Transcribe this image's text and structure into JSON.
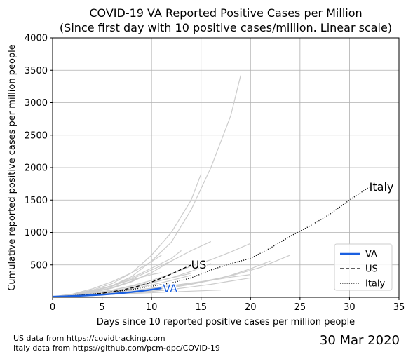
{
  "chart_data": {
    "type": "line",
    "title": "COVID-19 VA Reported Positive Cases per Million",
    "subtitle": "(Since first day with 10 positive cases/million. Linear scale)",
    "xlabel": "Days since 10 reported positive cases per million people",
    "ylabel": "Cumulative reported positive cases per million people",
    "xlim": [
      0,
      35
    ],
    "ylim": [
      0,
      4000
    ],
    "xticks": [
      0,
      5,
      10,
      15,
      20,
      25,
      30,
      35
    ],
    "xtick_labels": [
      "0",
      "5",
      "10",
      "15",
      "20",
      "25",
      "30",
      "35"
    ],
    "yticks": [
      500,
      1000,
      1500,
      2000,
      2500,
      3000,
      3500,
      4000
    ],
    "ytick_labels": [
      "500",
      "1000",
      "1500",
      "2000",
      "2500",
      "3000",
      "3500",
      "4000"
    ],
    "grid": true,
    "legend_position": "lower-right",
    "legend": [
      {
        "label": "VA",
        "style": "solid",
        "color": "#1a5fe0"
      },
      {
        "label": "US",
        "style": "dashed",
        "color": "#000000"
      },
      {
        "label": "Italy",
        "style": "dotted",
        "color": "#000000"
      }
    ],
    "series": [
      {
        "name": "VA",
        "color": "#1a5fe0",
        "style": "solid",
        "label_text": "VA",
        "x": [
          0,
          1,
          2,
          3,
          4,
          5,
          6,
          7,
          8,
          9,
          10,
          11
        ],
        "y": [
          10,
          14,
          19,
          25,
          32,
          40,
          52,
          65,
          80,
          98,
          118,
          140
        ]
      },
      {
        "name": "US",
        "color": "#000000",
        "style": "dashed",
        "label_text": "US",
        "x": [
          0,
          1,
          2,
          3,
          4,
          5,
          6,
          7,
          8,
          9,
          10,
          11,
          12,
          13,
          14
        ],
        "y": [
          10,
          15,
          22,
          32,
          45,
          62,
          85,
          112,
          145,
          185,
          235,
          295,
          360,
          430,
          500
        ]
      },
      {
        "name": "Italy",
        "color": "#000000",
        "style": "dotted",
        "label_text": "Italy",
        "x": [
          0,
          2,
          4,
          6,
          8,
          10,
          12,
          14,
          16,
          18,
          20,
          22,
          24,
          26,
          28,
          30,
          32
        ],
        "y": [
          10,
          25,
          50,
          80,
          120,
          170,
          220,
          300,
          420,
          520,
          600,
          760,
          940,
          1100,
          1280,
          1500,
          1700
        ]
      }
    ],
    "background_series": [
      {
        "color": "#cccccc",
        "x": [
          0,
          2,
          4,
          6,
          8,
          10,
          12,
          14,
          16,
          18,
          19
        ],
        "y": [
          10,
          40,
          90,
          180,
          320,
          560,
          850,
          1350,
          2000,
          2800,
          3420
        ]
      },
      {
        "color": "#cccccc",
        "x": [
          0,
          2,
          4,
          6,
          8,
          10,
          12,
          14,
          15
        ],
        "y": [
          10,
          45,
          110,
          210,
          380,
          650,
          1000,
          1500,
          1900
        ]
      },
      {
        "color": "#cccccc",
        "x": [
          0,
          2,
          4,
          6,
          8,
          10,
          12,
          14,
          16,
          18,
          20
        ],
        "y": [
          10,
          30,
          60,
          110,
          180,
          260,
          360,
          480,
          580,
          700,
          830
        ]
      },
      {
        "color": "#cccccc",
        "x": [
          0,
          2,
          4,
          6,
          8,
          10,
          12,
          14,
          16
        ],
        "y": [
          10,
          40,
          90,
          170,
          280,
          420,
          560,
          720,
          860
        ]
      },
      {
        "color": "#cccccc",
        "x": [
          0,
          2,
          4,
          6,
          8,
          10,
          11
        ],
        "y": [
          10,
          50,
          130,
          240,
          380,
          550,
          650
        ]
      },
      {
        "color": "#cccccc",
        "x": [
          0,
          2,
          4,
          6,
          8,
          10,
          12,
          13
        ],
        "y": [
          10,
          40,
          100,
          180,
          300,
          450,
          600,
          720
        ]
      },
      {
        "color": "#cccccc",
        "x": [
          0,
          3,
          6,
          9,
          12,
          15,
          18,
          21,
          24
        ],
        "y": [
          10,
          30,
          60,
          100,
          160,
          240,
          330,
          460,
          650
        ]
      },
      {
        "color": "#cccccc",
        "x": [
          0,
          2,
          4,
          6,
          8,
          10,
          12,
          14,
          16,
          18,
          20
        ],
        "y": [
          10,
          25,
          45,
          70,
          105,
          140,
          180,
          220,
          260,
          310,
          350
        ]
      },
      {
        "color": "#cccccc",
        "x": [
          0,
          2,
          4,
          6,
          8,
          10,
          11
        ],
        "y": [
          10,
          40,
          100,
          180,
          270,
          350,
          380
        ]
      },
      {
        "color": "#cccccc",
        "x": [
          0,
          2,
          4,
          6,
          8,
          10,
          12,
          14
        ],
        "y": [
          10,
          30,
          65,
          110,
          170,
          230,
          300,
          370
        ]
      },
      {
        "color": "#cccccc",
        "x": [
          0,
          2,
          4,
          6,
          8,
          10,
          12,
          14,
          16,
          17
        ],
        "y": [
          10,
          20,
          32,
          45,
          58,
          70,
          82,
          94,
          106,
          112
        ]
      },
      {
        "color": "#cccccc",
        "x": [
          0,
          2,
          4,
          6,
          8,
          10,
          12
        ],
        "y": [
          10,
          22,
          38,
          55,
          75,
          95,
          115
        ]
      },
      {
        "color": "#cccccc",
        "x": [
          0,
          2,
          4,
          6,
          8,
          10,
          12,
          14,
          16
        ],
        "y": [
          10,
          28,
          55,
          95,
          150,
          220,
          300,
          400,
          520
        ]
      },
      {
        "color": "#cccccc",
        "x": [
          0,
          2,
          4,
          6,
          8,
          10
        ],
        "y": [
          10,
          35,
          80,
          150,
          250,
          380
        ]
      },
      {
        "color": "#cccccc",
        "x": [
          0,
          2,
          4,
          6,
          8,
          10,
          12,
          14
        ],
        "y": [
          10,
          25,
          50,
          85,
          130,
          190,
          260,
          340
        ]
      },
      {
        "color": "#cccccc",
        "x": [
          0,
          2,
          4,
          6,
          8,
          10,
          12,
          14,
          16,
          18,
          20
        ],
        "y": [
          10,
          18,
          30,
          45,
          65,
          90,
          120,
          160,
          200,
          250,
          300
        ]
      },
      {
        "color": "#cccccc",
        "x": [
          0,
          2,
          4,
          6,
          8,
          10,
          12
        ],
        "y": [
          10,
          30,
          70,
          140,
          240,
          380,
          560
        ]
      },
      {
        "color": "#cccccc",
        "x": [
          0,
          2,
          4,
          6,
          8,
          10,
          12,
          14,
          16,
          18,
          20,
          22
        ],
        "y": [
          10,
          20,
          35,
          55,
          80,
          110,
          150,
          200,
          260,
          340,
          440,
          560
        ]
      }
    ]
  },
  "footer": {
    "source_us": "US data from https://covidtracking.com",
    "source_italy": "Italy data from https://github.com/pcm-dpc/COVID-19",
    "date": "30 Mar 2020"
  }
}
